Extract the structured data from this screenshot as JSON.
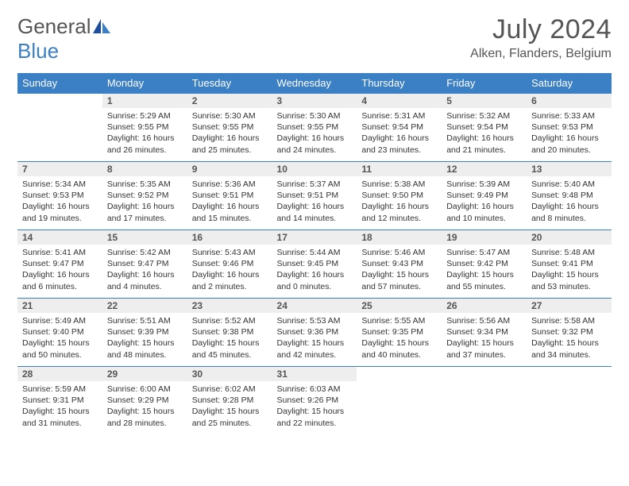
{
  "brand": {
    "part1": "General",
    "part2": "Blue"
  },
  "title": "July 2024",
  "subtitle": "Alken, Flanders, Belgium",
  "colors": {
    "accent": "#3b7fc4",
    "header_bg": "#3b7fc4",
    "header_text": "#ffffff",
    "daynum_bg": "#eeeeee",
    "body_text": "#333333",
    "title_text": "#555555"
  },
  "dayHeaders": [
    "Sunday",
    "Monday",
    "Tuesday",
    "Wednesday",
    "Thursday",
    "Friday",
    "Saturday"
  ],
  "weeks": [
    [
      {
        "num": "",
        "lines": []
      },
      {
        "num": "1",
        "lines": [
          "Sunrise: 5:29 AM",
          "Sunset: 9:55 PM",
          "Daylight: 16 hours",
          "and 26 minutes."
        ]
      },
      {
        "num": "2",
        "lines": [
          "Sunrise: 5:30 AM",
          "Sunset: 9:55 PM",
          "Daylight: 16 hours",
          "and 25 minutes."
        ]
      },
      {
        "num": "3",
        "lines": [
          "Sunrise: 5:30 AM",
          "Sunset: 9:55 PM",
          "Daylight: 16 hours",
          "and 24 minutes."
        ]
      },
      {
        "num": "4",
        "lines": [
          "Sunrise: 5:31 AM",
          "Sunset: 9:54 PM",
          "Daylight: 16 hours",
          "and 23 minutes."
        ]
      },
      {
        "num": "5",
        "lines": [
          "Sunrise: 5:32 AM",
          "Sunset: 9:54 PM",
          "Daylight: 16 hours",
          "and 21 minutes."
        ]
      },
      {
        "num": "6",
        "lines": [
          "Sunrise: 5:33 AM",
          "Sunset: 9:53 PM",
          "Daylight: 16 hours",
          "and 20 minutes."
        ]
      }
    ],
    [
      {
        "num": "7",
        "lines": [
          "Sunrise: 5:34 AM",
          "Sunset: 9:53 PM",
          "Daylight: 16 hours",
          "and 19 minutes."
        ]
      },
      {
        "num": "8",
        "lines": [
          "Sunrise: 5:35 AM",
          "Sunset: 9:52 PM",
          "Daylight: 16 hours",
          "and 17 minutes."
        ]
      },
      {
        "num": "9",
        "lines": [
          "Sunrise: 5:36 AM",
          "Sunset: 9:51 PM",
          "Daylight: 16 hours",
          "and 15 minutes."
        ]
      },
      {
        "num": "10",
        "lines": [
          "Sunrise: 5:37 AM",
          "Sunset: 9:51 PM",
          "Daylight: 16 hours",
          "and 14 minutes."
        ]
      },
      {
        "num": "11",
        "lines": [
          "Sunrise: 5:38 AM",
          "Sunset: 9:50 PM",
          "Daylight: 16 hours",
          "and 12 minutes."
        ]
      },
      {
        "num": "12",
        "lines": [
          "Sunrise: 5:39 AM",
          "Sunset: 9:49 PM",
          "Daylight: 16 hours",
          "and 10 minutes."
        ]
      },
      {
        "num": "13",
        "lines": [
          "Sunrise: 5:40 AM",
          "Sunset: 9:48 PM",
          "Daylight: 16 hours",
          "and 8 minutes."
        ]
      }
    ],
    [
      {
        "num": "14",
        "lines": [
          "Sunrise: 5:41 AM",
          "Sunset: 9:47 PM",
          "Daylight: 16 hours",
          "and 6 minutes."
        ]
      },
      {
        "num": "15",
        "lines": [
          "Sunrise: 5:42 AM",
          "Sunset: 9:47 PM",
          "Daylight: 16 hours",
          "and 4 minutes."
        ]
      },
      {
        "num": "16",
        "lines": [
          "Sunrise: 5:43 AM",
          "Sunset: 9:46 PM",
          "Daylight: 16 hours",
          "and 2 minutes."
        ]
      },
      {
        "num": "17",
        "lines": [
          "Sunrise: 5:44 AM",
          "Sunset: 9:45 PM",
          "Daylight: 16 hours",
          "and 0 minutes."
        ]
      },
      {
        "num": "18",
        "lines": [
          "Sunrise: 5:46 AM",
          "Sunset: 9:43 PM",
          "Daylight: 15 hours",
          "and 57 minutes."
        ]
      },
      {
        "num": "19",
        "lines": [
          "Sunrise: 5:47 AM",
          "Sunset: 9:42 PM",
          "Daylight: 15 hours",
          "and 55 minutes."
        ]
      },
      {
        "num": "20",
        "lines": [
          "Sunrise: 5:48 AM",
          "Sunset: 9:41 PM",
          "Daylight: 15 hours",
          "and 53 minutes."
        ]
      }
    ],
    [
      {
        "num": "21",
        "lines": [
          "Sunrise: 5:49 AM",
          "Sunset: 9:40 PM",
          "Daylight: 15 hours",
          "and 50 minutes."
        ]
      },
      {
        "num": "22",
        "lines": [
          "Sunrise: 5:51 AM",
          "Sunset: 9:39 PM",
          "Daylight: 15 hours",
          "and 48 minutes."
        ]
      },
      {
        "num": "23",
        "lines": [
          "Sunrise: 5:52 AM",
          "Sunset: 9:38 PM",
          "Daylight: 15 hours",
          "and 45 minutes."
        ]
      },
      {
        "num": "24",
        "lines": [
          "Sunrise: 5:53 AM",
          "Sunset: 9:36 PM",
          "Daylight: 15 hours",
          "and 42 minutes."
        ]
      },
      {
        "num": "25",
        "lines": [
          "Sunrise: 5:55 AM",
          "Sunset: 9:35 PM",
          "Daylight: 15 hours",
          "and 40 minutes."
        ]
      },
      {
        "num": "26",
        "lines": [
          "Sunrise: 5:56 AM",
          "Sunset: 9:34 PM",
          "Daylight: 15 hours",
          "and 37 minutes."
        ]
      },
      {
        "num": "27",
        "lines": [
          "Sunrise: 5:58 AM",
          "Sunset: 9:32 PM",
          "Daylight: 15 hours",
          "and 34 minutes."
        ]
      }
    ],
    [
      {
        "num": "28",
        "lines": [
          "Sunrise: 5:59 AM",
          "Sunset: 9:31 PM",
          "Daylight: 15 hours",
          "and 31 minutes."
        ]
      },
      {
        "num": "29",
        "lines": [
          "Sunrise: 6:00 AM",
          "Sunset: 9:29 PM",
          "Daylight: 15 hours",
          "and 28 minutes."
        ]
      },
      {
        "num": "30",
        "lines": [
          "Sunrise: 6:02 AM",
          "Sunset: 9:28 PM",
          "Daylight: 15 hours",
          "and 25 minutes."
        ]
      },
      {
        "num": "31",
        "lines": [
          "Sunrise: 6:03 AM",
          "Sunset: 9:26 PM",
          "Daylight: 15 hours",
          "and 22 minutes."
        ]
      },
      {
        "num": "",
        "lines": []
      },
      {
        "num": "",
        "lines": []
      },
      {
        "num": "",
        "lines": []
      }
    ]
  ]
}
